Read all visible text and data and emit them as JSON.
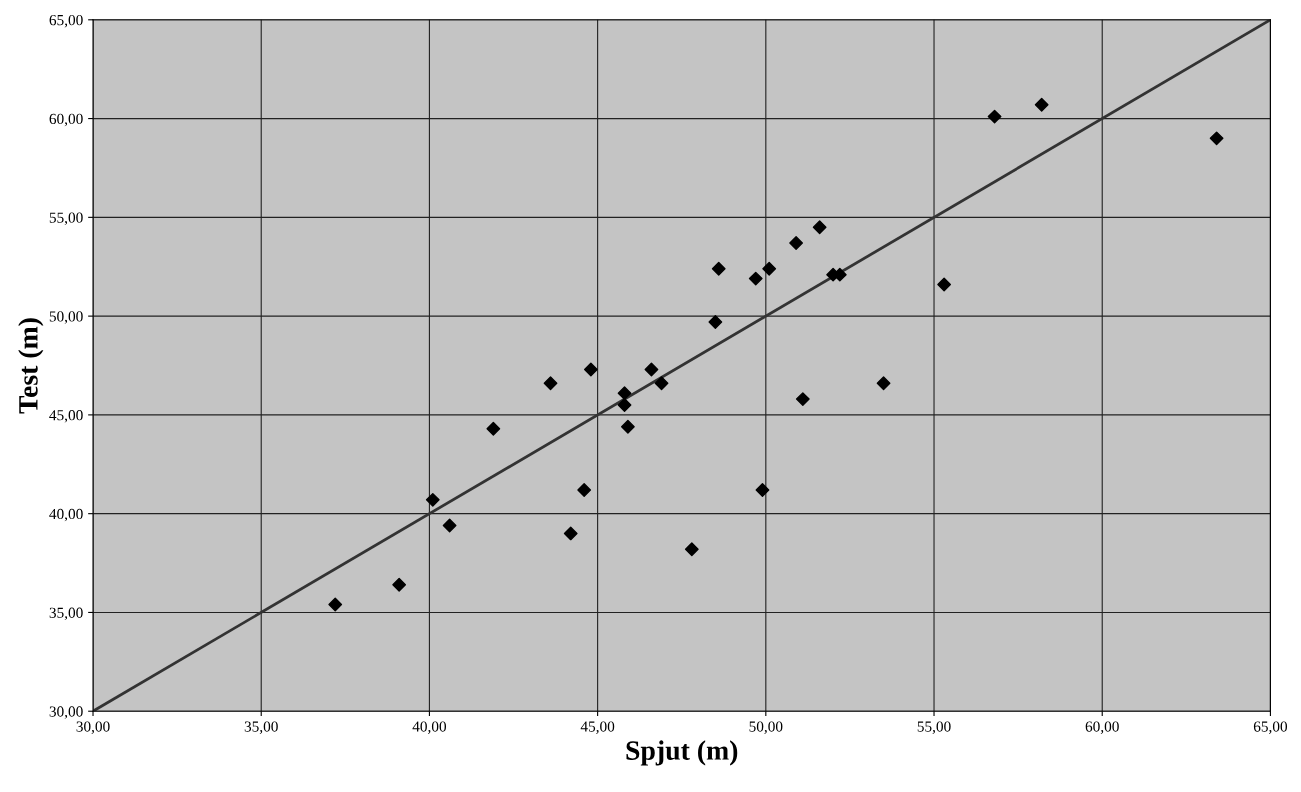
{
  "chart_data": {
    "type": "scatter",
    "xlabel": "Spjut (m)",
    "ylabel": "Test (m)",
    "x": [
      37.2,
      39.1,
      40.1,
      40.6,
      41.9,
      43.6,
      44.2,
      44.6,
      44.8,
      45.8,
      45.8,
      45.9,
      46.6,
      46.9,
      47.8,
      48.5,
      48.6,
      49.7,
      49.9,
      50.1,
      50.9,
      51.1,
      51.6,
      52.0,
      52.2,
      53.5,
      55.3,
      56.8,
      58.2,
      63.4
    ],
    "series": [
      {
        "color": "#000000",
        "marker": "diamond",
        "values": [
          35.4,
          36.4,
          40.7,
          39.4,
          44.3,
          46.6,
          39.0,
          41.2,
          47.3,
          46.1,
          45.5,
          44.4,
          47.3,
          46.6,
          38.2,
          49.7,
          52.4,
          51.9,
          41.2,
          52.4,
          53.7,
          45.8,
          54.5,
          52.1,
          52.1,
          46.6,
          51.6,
          60.1,
          60.7,
          59.0
        ]
      },
      {
        "type": "line",
        "color": "#333333",
        "line_style": "solid",
        "marker": "none",
        "x": [
          30,
          65
        ],
        "values": [
          30,
          65
        ]
      }
    ],
    "xlim": [
      30,
      65
    ],
    "ylim": [
      30,
      65
    ],
    "xticks": [
      {
        "value": 30,
        "label": "30,00"
      },
      {
        "value": 35,
        "label": "35,00"
      },
      {
        "value": 40,
        "label": "40,00"
      },
      {
        "value": 45,
        "label": "45,00"
      },
      {
        "value": 50,
        "label": "50,00"
      },
      {
        "value": 55,
        "label": "55,00"
      },
      {
        "value": 60,
        "label": "60,00"
      },
      {
        "value": 65,
        "label": "65,00"
      }
    ],
    "yticks": [
      {
        "value": 30,
        "label": "30,00"
      },
      {
        "value": 35,
        "label": "35,00"
      },
      {
        "value": 40,
        "label": "40,00"
      },
      {
        "value": 45,
        "label": "45,00"
      },
      {
        "value": 50,
        "label": "50,00"
      },
      {
        "value": 55,
        "label": "55,00"
      },
      {
        "value": 60,
        "label": "60,00"
      },
      {
        "value": 65,
        "label": "65,00"
      }
    ],
    "grid": true
  }
}
